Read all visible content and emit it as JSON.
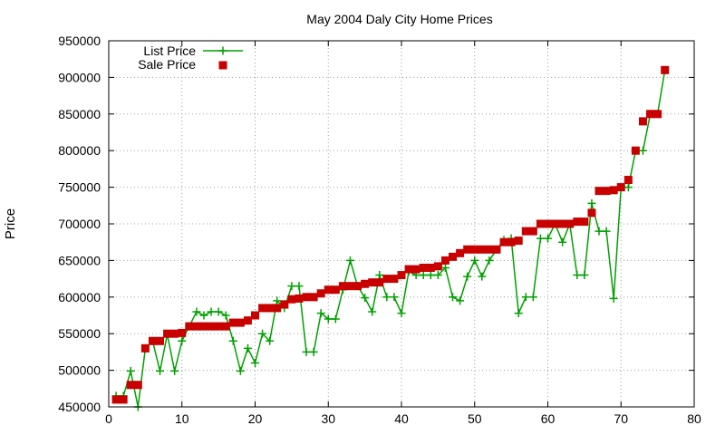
{
  "chart_data": {
    "type": "line",
    "title": "May 2004 Daly City Home Prices",
    "ylabel": "Price",
    "xlabel": "",
    "xlim": [
      0,
      80
    ],
    "ylim": [
      450000,
      950000
    ],
    "x_ticks": [
      0,
      10,
      20,
      30,
      40,
      50,
      60,
      70,
      80
    ],
    "y_ticks": [
      450000,
      500000,
      550000,
      600000,
      650000,
      700000,
      750000,
      800000,
      850000,
      900000,
      950000
    ],
    "grid": true,
    "legend_position": "top-left",
    "series": [
      {
        "name": "List Price",
        "style": "line-with-plus-markers",
        "color": "#00a000",
        "values": [
          [
            1,
            465000
          ],
          [
            2,
            465000
          ],
          [
            3,
            499000
          ],
          [
            4,
            450000
          ],
          [
            5,
            530000
          ],
          [
            6,
            540000
          ],
          [
            7,
            499000
          ],
          [
            8,
            549000
          ],
          [
            9,
            499000
          ],
          [
            10,
            540000
          ],
          [
            11,
            560000
          ],
          [
            12,
            580000
          ],
          [
            13,
            575000
          ],
          [
            14,
            580000
          ],
          [
            15,
            580000
          ],
          [
            16,
            575000
          ],
          [
            17,
            540000
          ],
          [
            18,
            499000
          ],
          [
            19,
            530000
          ],
          [
            20,
            510000
          ],
          [
            21,
            550000
          ],
          [
            22,
            540000
          ],
          [
            23,
            595000
          ],
          [
            24,
            585000
          ],
          [
            25,
            615000
          ],
          [
            26,
            615000
          ],
          [
            27,
            525000
          ],
          [
            28,
            525000
          ],
          [
            29,
            578000
          ],
          [
            30,
            570000
          ],
          [
            31,
            570000
          ],
          [
            32,
            610000
          ],
          [
            33,
            650000
          ],
          [
            34,
            615000
          ],
          [
            35,
            599000
          ],
          [
            36,
            580000
          ],
          [
            37,
            630000
          ],
          [
            38,
            600000
          ],
          [
            39,
            600000
          ],
          [
            40,
            578000
          ],
          [
            41,
            635000
          ],
          [
            42,
            630000
          ],
          [
            43,
            630000
          ],
          [
            44,
            630000
          ],
          [
            45,
            630000
          ],
          [
            46,
            640000
          ],
          [
            47,
            600000
          ],
          [
            48,
            595000
          ],
          [
            49,
            628000
          ],
          [
            50,
            650000
          ],
          [
            51,
            628000
          ],
          [
            52,
            650000
          ],
          [
            53,
            665000
          ],
          [
            54,
            678000
          ],
          [
            55,
            680000
          ],
          [
            56,
            578000
          ],
          [
            57,
            600000
          ],
          [
            58,
            600000
          ],
          [
            59,
            680000
          ],
          [
            60,
            680000
          ],
          [
            61,
            700000
          ],
          [
            62,
            675000
          ],
          [
            63,
            700000
          ],
          [
            64,
            630000
          ],
          [
            65,
            630000
          ],
          [
            66,
            728000
          ],
          [
            67,
            690000
          ],
          [
            68,
            690000
          ],
          [
            69,
            598000
          ],
          [
            70,
            750000
          ],
          [
            71,
            750000
          ],
          [
            72,
            800000
          ],
          [
            73,
            800000
          ],
          [
            74,
            850000
          ],
          [
            75,
            850000
          ],
          [
            76,
            910000
          ]
        ]
      },
      {
        "name": "Sale Price",
        "style": "square-markers",
        "color": "#c80000",
        "values": [
          [
            1,
            460000
          ],
          [
            2,
            460000
          ],
          [
            3,
            480000
          ],
          [
            4,
            480000
          ],
          [
            5,
            530000
          ],
          [
            6,
            540000
          ],
          [
            7,
            540000
          ],
          [
            8,
            550000
          ],
          [
            9,
            550000
          ],
          [
            10,
            551000
          ],
          [
            11,
            560000
          ],
          [
            12,
            560000
          ],
          [
            13,
            560000
          ],
          [
            14,
            560000
          ],
          [
            15,
            560000
          ],
          [
            16,
            560000
          ],
          [
            17,
            565000
          ],
          [
            18,
            565000
          ],
          [
            19,
            568000
          ],
          [
            20,
            575000
          ],
          [
            21,
            585000
          ],
          [
            22,
            585000
          ],
          [
            23,
            585000
          ],
          [
            24,
            590000
          ],
          [
            25,
            597000
          ],
          [
            26,
            598000
          ],
          [
            27,
            600000
          ],
          [
            28,
            600000
          ],
          [
            29,
            605000
          ],
          [
            30,
            610000
          ],
          [
            31,
            610000
          ],
          [
            32,
            615000
          ],
          [
            33,
            615000
          ],
          [
            34,
            615000
          ],
          [
            35,
            618000
          ],
          [
            36,
            620000
          ],
          [
            37,
            620000
          ],
          [
            38,
            625000
          ],
          [
            39,
            625000
          ],
          [
            40,
            630000
          ],
          [
            41,
            638000
          ],
          [
            42,
            638000
          ],
          [
            43,
            640000
          ],
          [
            44,
            640000
          ],
          [
            45,
            642000
          ],
          [
            46,
            650000
          ],
          [
            47,
            655000
          ],
          [
            48,
            660000
          ],
          [
            49,
            665000
          ],
          [
            50,
            665000
          ],
          [
            51,
            665000
          ],
          [
            52,
            665000
          ],
          [
            53,
            665000
          ],
          [
            54,
            675000
          ],
          [
            55,
            675000
          ],
          [
            56,
            677000
          ],
          [
            57,
            690000
          ],
          [
            58,
            690000
          ],
          [
            59,
            700000
          ],
          [
            60,
            700000
          ],
          [
            61,
            700000
          ],
          [
            62,
            700000
          ],
          [
            63,
            700000
          ],
          [
            64,
            703000
          ],
          [
            65,
            703000
          ],
          [
            66,
            715000
          ],
          [
            67,
            745000
          ],
          [
            68,
            745000
          ],
          [
            69,
            746000
          ],
          [
            70,
            750000
          ],
          [
            71,
            760000
          ],
          [
            72,
            800000
          ],
          [
            73,
            840000
          ],
          [
            74,
            850000
          ],
          [
            75,
            850000
          ],
          [
            76,
            910000
          ]
        ]
      }
    ]
  }
}
